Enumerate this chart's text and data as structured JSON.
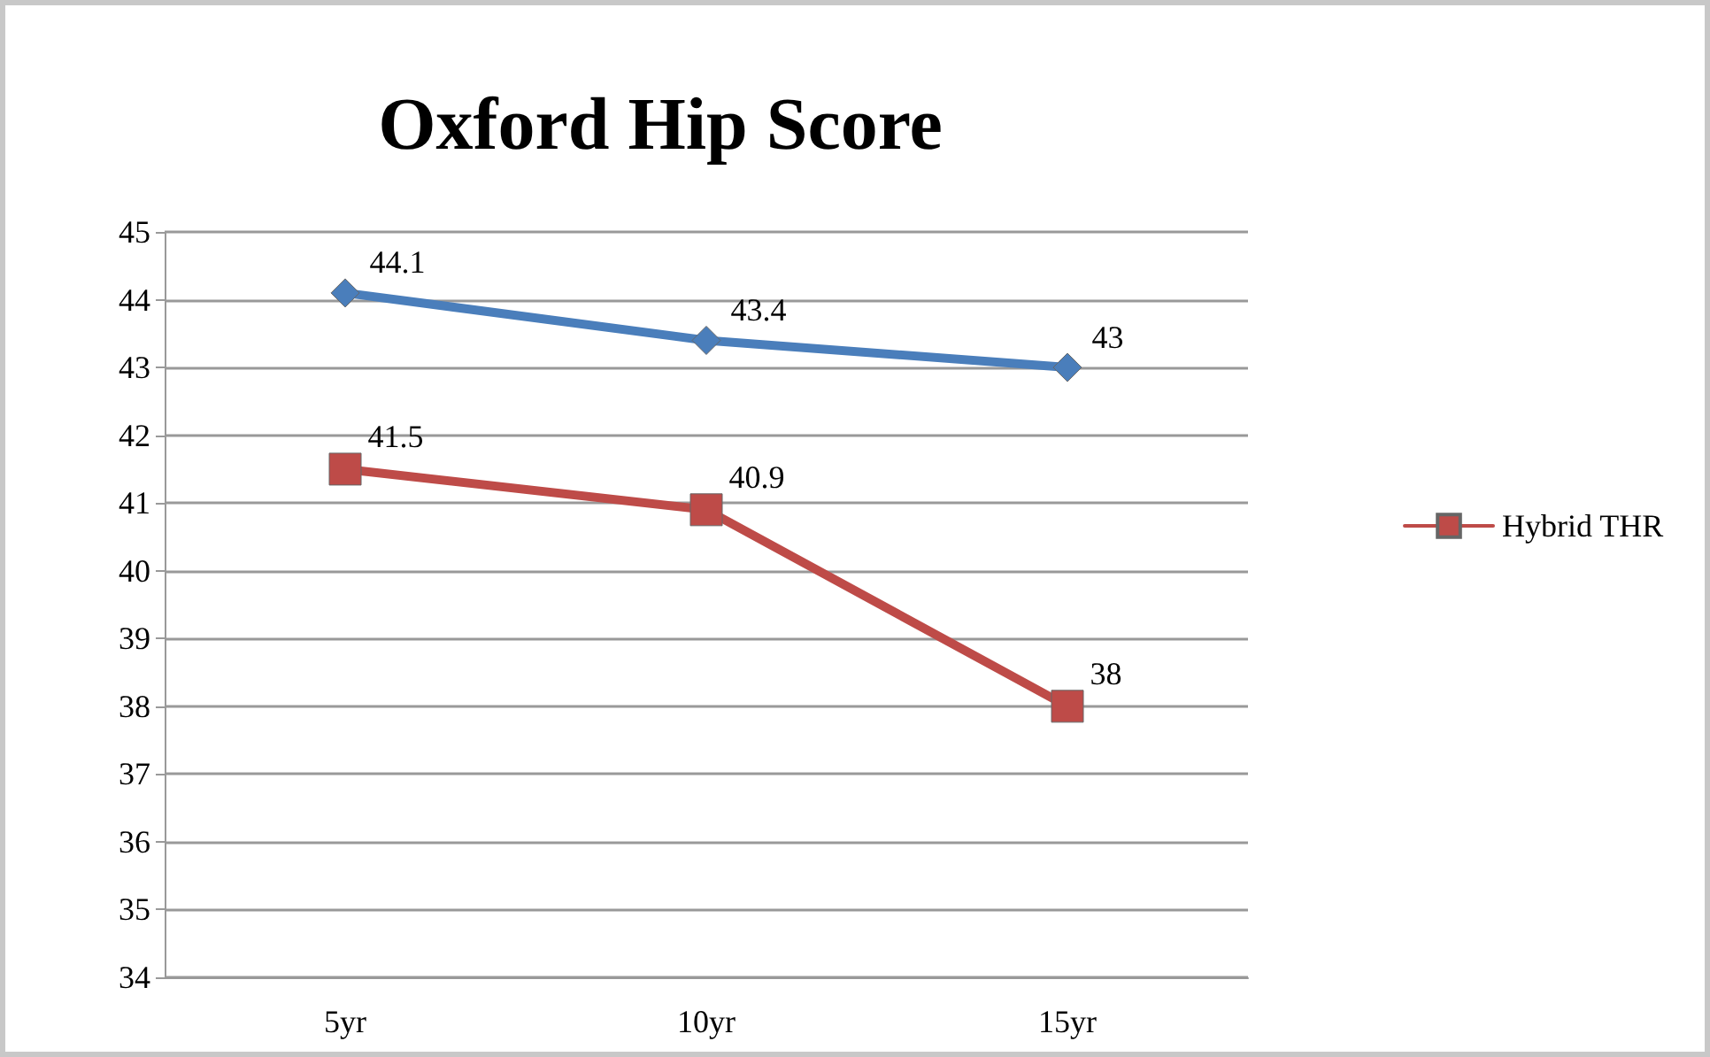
{
  "chart_data": {
    "type": "line",
    "title": "Oxford Hip Score",
    "categories": [
      "5yr",
      "10yr",
      "15yr"
    ],
    "series": [
      {
        "color": "#4a7ebb",
        "marker": "diamond",
        "values": [
          44.1,
          43.4,
          43
        ]
      },
      {
        "name": "Hybrid THR",
        "color": "#be4b48",
        "marker": "square",
        "values": [
          41.5,
          40.9,
          38
        ]
      }
    ],
    "ylim": [
      34,
      45
    ],
    "yticks": [
      34,
      35,
      36,
      37,
      38,
      39,
      40,
      41,
      42,
      43,
      44,
      45
    ],
    "grid": "y",
    "legend": "right",
    "data_labels": true
  }
}
